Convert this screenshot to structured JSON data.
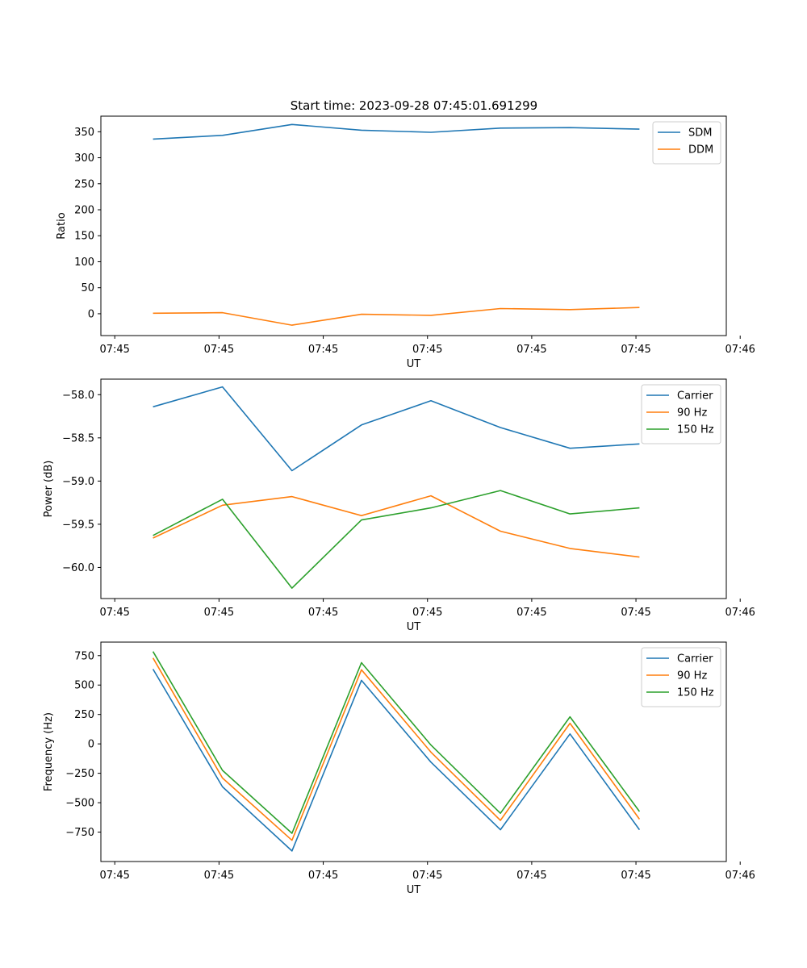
{
  "figure_title": "Start time: 2023-09-28 07:45:01.691299",
  "colors": {
    "blue": "#1f77b4",
    "orange": "#ff7f0e",
    "green": "#2ca02c"
  },
  "chart_data": [
    {
      "type": "line",
      "xlabel": "UT",
      "ylabel": "Ratio",
      "x": [
        1,
        2,
        3,
        4,
        5,
        6,
        7,
        8
      ],
      "xlim": [
        0.25,
        9.25
      ],
      "xticks": [
        0.45,
        1.95,
        3.45,
        4.95,
        6.45,
        7.95,
        9.45
      ],
      "xtick_labels": [
        "07:45",
        "07:45",
        "07:45",
        "07:45",
        "07:45",
        "07:45",
        "07:46"
      ],
      "ylim": [
        -42,
        380
      ],
      "yticks": [
        0,
        50,
        100,
        150,
        200,
        250,
        300,
        350
      ],
      "ytick_labels": [
        "0",
        "50",
        "100",
        "150",
        "200",
        "250",
        "300",
        "350"
      ],
      "legend": "top-right",
      "series": [
        {
          "name": "SDM",
          "color": "#1f77b4",
          "values": [
            336,
            343,
            364,
            353,
            349,
            357,
            358,
            355
          ]
        },
        {
          "name": "DDM",
          "color": "#ff7f0e",
          "values": [
            1,
            2,
            -22,
            -1,
            -3,
            10,
            8,
            12
          ]
        }
      ]
    },
    {
      "type": "line",
      "xlabel": "UT",
      "ylabel": "Power (dB)",
      "x": [
        1,
        2,
        3,
        4,
        5,
        6,
        7,
        8
      ],
      "xlim": [
        0.25,
        9.25
      ],
      "xticks": [
        0.45,
        1.95,
        3.45,
        4.95,
        6.45,
        7.95,
        9.45
      ],
      "xtick_labels": [
        "07:45",
        "07:45",
        "07:45",
        "07:45",
        "07:45",
        "07:45",
        "07:46"
      ],
      "ylim": [
        -60.36,
        -57.82
      ],
      "yticks": [
        -58.0,
        -58.5,
        -59.0,
        -59.5,
        -60.0
      ],
      "ytick_labels": [
        "−58.0",
        "−58.5",
        "−59.0",
        "−59.5",
        "−60.0"
      ],
      "legend": "top-right",
      "series": [
        {
          "name": "Carrier",
          "color": "#1f77b4",
          "values": [
            -58.14,
            -57.91,
            -58.88,
            -58.35,
            -58.07,
            -58.38,
            -58.62,
            -58.57
          ]
        },
        {
          "name": "90 Hz",
          "color": "#ff7f0e",
          "values": [
            -59.66,
            -59.28,
            -59.18,
            -59.4,
            -59.17,
            -59.58,
            -59.78,
            -59.88
          ]
        },
        {
          "name": "150 Hz",
          "color": "#2ca02c",
          "values": [
            -59.63,
            -59.21,
            -60.24,
            -59.45,
            -59.31,
            -59.11,
            -59.38,
            -59.31
          ]
        }
      ]
    },
    {
      "type": "line",
      "xlabel": "UT",
      "ylabel": "Frequency (Hz)",
      "x": [
        1,
        2,
        3,
        4,
        5,
        6,
        7,
        8
      ],
      "xlim": [
        0.25,
        9.25
      ],
      "xticks": [
        0.45,
        1.95,
        3.45,
        4.95,
        6.45,
        7.95,
        9.45
      ],
      "xtick_labels": [
        "07:45",
        "07:45",
        "07:45",
        "07:45",
        "07:45",
        "07:45",
        "07:46"
      ],
      "ylim": [
        -1000,
        865
      ],
      "yticks": [
        750,
        500,
        250,
        0,
        -250,
        -500,
        -750
      ],
      "ytick_labels": [
        "750",
        "500",
        "250",
        "0",
        "−250",
        "−500",
        "−750"
      ],
      "legend": "top-right",
      "series": [
        {
          "name": "Carrier",
          "color": "#1f77b4",
          "values": [
            635,
            -365,
            -910,
            540,
            -155,
            -730,
            85,
            -730
          ]
        },
        {
          "name": "90 Hz",
          "color": "#ff7f0e",
          "values": [
            730,
            -290,
            -820,
            630,
            -70,
            -650,
            175,
            -640
          ]
        },
        {
          "name": "150 Hz",
          "color": "#2ca02c",
          "values": [
            785,
            -225,
            -760,
            690,
            -10,
            -590,
            230,
            -575
          ]
        }
      ]
    }
  ]
}
